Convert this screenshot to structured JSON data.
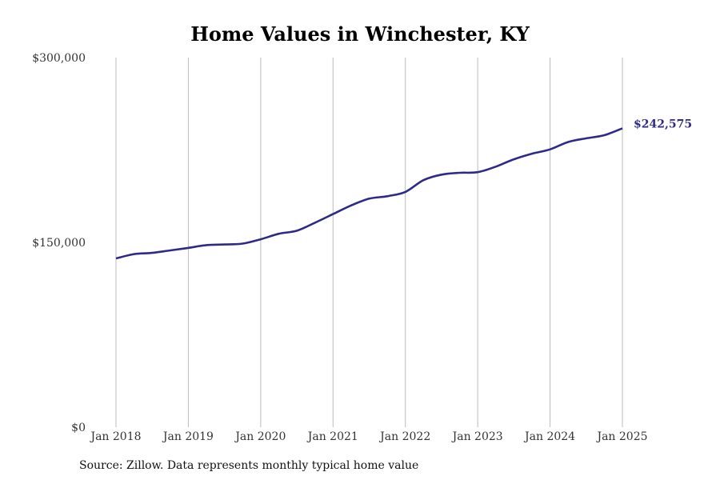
{
  "chart_data": {
    "type": "line",
    "title": "Home Values in Winchester, KY",
    "xlabel": "",
    "ylabel": "",
    "source": "Source: Zillow. Data represents monthly typical home value",
    "x_ticks": [
      "Jan 2018",
      "Jan 2019",
      "Jan 2020",
      "Jan 2021",
      "Jan 2022",
      "Jan 2023",
      "Jan 2024",
      "Jan 2025"
    ],
    "y_ticks": [
      {
        "value": 0,
        "label": "$0"
      },
      {
        "value": 150000,
        "label": "$150,000"
      },
      {
        "value": 300000,
        "label": "$300,000"
      }
    ],
    "ylim": [
      0,
      300000
    ],
    "xlim": [
      "2018-01",
      "2025-01"
    ],
    "grid": {
      "vertical": true,
      "horizontal": false
    },
    "line_color": "#2e2a87",
    "grid_color": "#bbbbbb",
    "end_label": "$242,575",
    "series": [
      {
        "x": [
          "2018-01",
          "2018-04",
          "2018-07",
          "2018-10",
          "2019-01",
          "2019-04",
          "2019-07",
          "2019-10",
          "2020-01",
          "2020-04",
          "2020-07",
          "2020-10",
          "2021-01",
          "2021-04",
          "2021-07",
          "2021-10",
          "2022-01",
          "2022-04",
          "2022-07",
          "2022-10",
          "2023-01",
          "2023-04",
          "2023-07",
          "2023-10",
          "2024-01",
          "2024-04",
          "2024-07",
          "2024-10",
          "2025-01"
        ],
        "values": [
          137000,
          140500,
          141500,
          143500,
          145500,
          147800,
          148300,
          149000,
          152500,
          157000,
          159500,
          166000,
          173000,
          180000,
          185500,
          187500,
          191000,
          200500,
          205000,
          206500,
          207000,
          211500,
          217500,
          222000,
          225500,
          231500,
          234500,
          237000,
          242575
        ]
      }
    ]
  }
}
